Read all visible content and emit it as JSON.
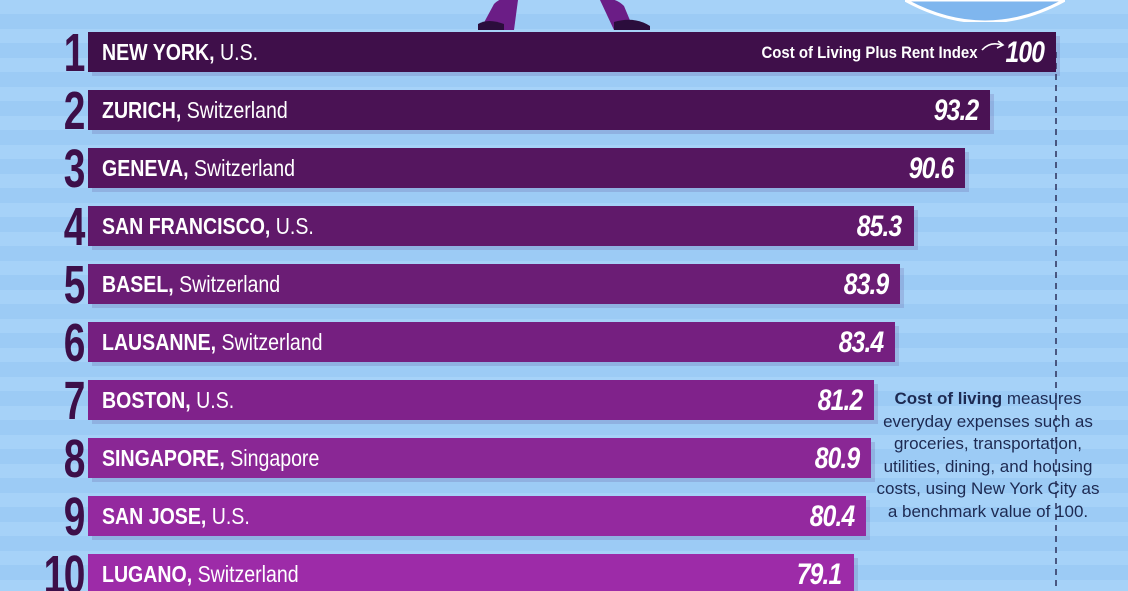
{
  "chart_data": {
    "type": "bar",
    "orientation": "horizontal",
    "index_label": "Cost of Living Plus Rent Index",
    "ranks": [
      "1",
      "2",
      "3",
      "4",
      "5",
      "6",
      "7",
      "8",
      "9",
      "10"
    ],
    "cities": [
      "NEW YORK,",
      "ZURICH,",
      "GENEVA,",
      "SAN FRANCISCO,",
      "BASEL,",
      "LAUSANNE,",
      "BOSTON,",
      "SINGAPORE,",
      "SAN JOSE,",
      "LUGANO,"
    ],
    "countries": [
      "U.S.",
      "Switzerland",
      "Switzerland",
      "U.S.",
      "Switzerland",
      "Switzerland",
      "U.S.",
      "Singapore",
      "U.S.",
      "Switzerland"
    ],
    "values": [
      100,
      93.2,
      90.6,
      85.3,
      83.9,
      83.4,
      81.2,
      80.9,
      80.4,
      79.1
    ],
    "value_labels": [
      "100",
      "93.2",
      "90.6",
      "85.3",
      "83.9",
      "83.4",
      "81.2",
      "80.9",
      "80.4",
      "79.1"
    ],
    "xlim": [
      0,
      100
    ],
    "bar_colors": [
      "#3f0f4a",
      "#4a1254",
      "#55165f",
      "#60196a",
      "#6b1d75",
      "#751f80",
      "#80228b",
      "#8a2795",
      "#94299f",
      "#9d2ba8"
    ],
    "rank_color": "#3d0f49"
  },
  "note": {
    "bold": "Cost of living",
    "rest": " measures everyday expenses such as groceries, transportation, utilities, dining, and housing costs, using New York City as a benchmark value of 100."
  }
}
